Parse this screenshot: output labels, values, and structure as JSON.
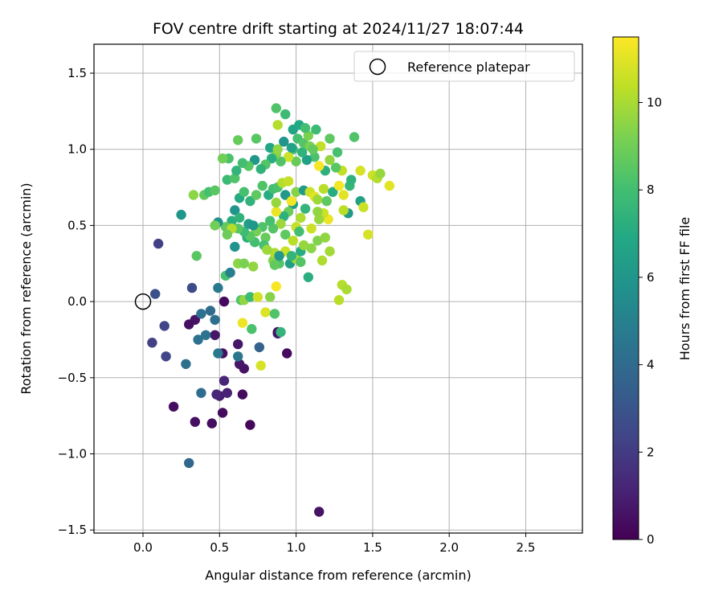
{
  "chart_data": {
    "type": "scatter",
    "title": "FOV centre drift starting at 2024/11/27 18:07:44",
    "xlabel": "Angular distance from reference (arcmin)",
    "ylabel": "Rotation from reference (arcmin)",
    "xlim": [
      -0.32,
      2.87
    ],
    "ylim": [
      -1.52,
      1.69
    ],
    "xticks": [
      0.0,
      0.5,
      1.0,
      1.5,
      2.0,
      2.5
    ],
    "xtick_labels": [
      "0.0",
      "0.5",
      "1.0",
      "1.5",
      "2.0",
      "2.5"
    ],
    "yticks": [
      -1.5,
      -1.0,
      -0.5,
      0.0,
      0.5,
      1.0,
      1.5
    ],
    "ytick_labels": [
      "−1.5",
      "−1.0",
      "−0.5",
      "0.0",
      "0.5",
      "1.0",
      "1.5"
    ],
    "grid": true,
    "colormap": "viridis",
    "colorbar": {
      "label": "Hours from first FF file",
      "min": 0,
      "max": 11.5,
      "ticks": [
        0,
        2,
        4,
        6,
        8,
        10
      ],
      "tick_labels": [
        "0",
        "2",
        "4",
        "6",
        "8",
        "10"
      ]
    },
    "legend": {
      "position": "top-right",
      "entries": [
        {
          "label": "Reference platepar",
          "marker": "open-circle"
        }
      ]
    },
    "reference_point": {
      "x": 0.0,
      "y": 0.0
    },
    "series": [
      {
        "points": [
          [
            1.15,
            -1.38,
            0.6
          ],
          [
            0.3,
            -1.06,
            3.8
          ],
          [
            0.2,
            -0.69,
            0.4
          ],
          [
            0.34,
            -0.79,
            0.5
          ],
          [
            0.45,
            -0.8,
            0.4
          ],
          [
            0.52,
            -0.73,
            0.3
          ],
          [
            0.7,
            -0.81,
            0.2
          ],
          [
            0.5,
            -0.62,
            1.0
          ],
          [
            0.48,
            -0.61,
            1.2
          ],
          [
            0.55,
            -0.6,
            1.1
          ],
          [
            0.65,
            -0.61,
            0.3
          ],
          [
            0.38,
            -0.6,
            4.1
          ],
          [
            0.53,
            -0.52,
            1.2
          ],
          [
            0.66,
            -0.44,
            0.6
          ],
          [
            0.63,
            -0.41,
            0.7
          ],
          [
            0.28,
            -0.41,
            4.2
          ],
          [
            0.62,
            -0.36,
            4.5
          ],
          [
            0.52,
            -0.34,
            0.5
          ],
          [
            0.49,
            -0.34,
            4.6
          ],
          [
            0.15,
            -0.36,
            2.4
          ],
          [
            0.06,
            -0.27,
            2.2
          ],
          [
            0.62,
            -0.28,
            0.7
          ],
          [
            0.76,
            -0.3,
            3.6
          ],
          [
            0.94,
            -0.34,
            0.3
          ],
          [
            0.36,
            -0.25,
            4.3
          ],
          [
            0.47,
            -0.22,
            0.7
          ],
          [
            0.41,
            -0.22,
            4.4
          ],
          [
            0.34,
            -0.12,
            0.6
          ],
          [
            0.3,
            -0.15,
            0.5
          ],
          [
            0.14,
            -0.16,
            2.4
          ],
          [
            0.38,
            -0.08,
            4.3
          ],
          [
            0.44,
            -0.06,
            4.0
          ],
          [
            0.47,
            -0.12,
            4.3
          ],
          [
            0.88,
            -0.21,
            1.6
          ],
          [
            0.88,
            -0.2,
            0.5
          ],
          [
            0.9,
            -0.2,
            7.5
          ],
          [
            0.71,
            -0.18,
            8.2
          ],
          [
            0.65,
            -0.14,
            11.2
          ],
          [
            0.77,
            -0.42,
            10.8
          ],
          [
            0.8,
            -0.07,
            10.9
          ],
          [
            0.86,
            -0.08,
            8.3
          ],
          [
            0.53,
            0.0,
            0.3
          ],
          [
            0.64,
            0.01,
            8.3
          ],
          [
            0.66,
            0.01,
            9.6
          ],
          [
            0.7,
            0.03,
            7.8
          ],
          [
            0.75,
            0.03,
            10.7
          ],
          [
            0.83,
            0.03,
            9.4
          ],
          [
            0.87,
            0.1,
            11.4
          ],
          [
            0.49,
            0.09,
            4.6
          ],
          [
            0.32,
            0.09,
            2.6
          ],
          [
            0.08,
            0.05,
            2.8
          ],
          [
            0.1,
            0.38,
            2.2
          ],
          [
            0.35,
            0.3,
            8.5
          ],
          [
            0.54,
            0.17,
            8.1
          ],
          [
            0.57,
            0.19,
            4.9
          ],
          [
            0.62,
            0.25,
            9.5
          ],
          [
            0.66,
            0.25,
            9.2
          ],
          [
            0.72,
            0.23,
            9.6
          ],
          [
            0.6,
            0.36,
            5.8
          ],
          [
            0.68,
            0.42,
            7.2
          ],
          [
            0.73,
            0.39,
            8.0
          ],
          [
            0.8,
            0.42,
            8.8
          ],
          [
            0.85,
            0.27,
            9.4
          ],
          [
            0.86,
            0.32,
            10.1
          ],
          [
            0.89,
            0.25,
            8.4
          ],
          [
            0.93,
            0.33,
            10.6
          ],
          [
            0.96,
            0.25,
            6.4
          ],
          [
            1.0,
            0.28,
            9.9
          ],
          [
            1.03,
            0.33,
            7.1
          ],
          [
            1.05,
            0.37,
            9.7
          ],
          [
            1.08,
            0.16,
            7.2
          ],
          [
            1.1,
            0.35,
            9.5
          ],
          [
            1.14,
            0.4,
            9.3
          ],
          [
            1.17,
            0.27,
            10.1
          ],
          [
            1.19,
            0.42,
            9.6
          ],
          [
            1.22,
            0.33,
            9.9
          ],
          [
            1.28,
            0.01,
            10.3
          ],
          [
            1.3,
            0.11,
            10.2
          ],
          [
            1.33,
            0.08,
            10.0
          ],
          [
            1.21,
            0.54,
            11.2
          ],
          [
            1.18,
            0.58,
            10.6
          ],
          [
            1.15,
            0.54,
            9.7
          ],
          [
            1.1,
            0.48,
            10.6
          ],
          [
            1.06,
            0.61,
            7.5
          ],
          [
            1.03,
            0.55,
            10.1
          ],
          [
            1.0,
            0.49,
            10.5
          ],
          [
            0.98,
            0.64,
            6.3
          ],
          [
            0.95,
            0.59,
            8.9
          ],
          [
            0.92,
            0.56,
            7.3
          ],
          [
            0.9,
            0.51,
            9.8
          ],
          [
            0.87,
            0.59,
            11.2
          ],
          [
            0.85,
            0.48,
            8.4
          ],
          [
            0.83,
            0.53,
            8.1
          ],
          [
            0.78,
            0.49,
            8.3
          ],
          [
            0.74,
            0.46,
            9.1
          ],
          [
            0.7,
            0.43,
            8.5
          ],
          [
            0.66,
            0.46,
            7.8
          ],
          [
            0.62,
            0.48,
            8.5
          ],
          [
            0.58,
            0.53,
            7.2
          ],
          [
            0.54,
            0.49,
            8.7
          ],
          [
            0.49,
            0.52,
            5.8
          ],
          [
            0.6,
            0.6,
            5.9
          ],
          [
            0.63,
            0.55,
            7.4
          ],
          [
            0.69,
            0.51,
            6.5
          ],
          [
            0.72,
            0.5,
            6.0
          ],
          [
            0.25,
            0.57,
            6.0
          ],
          [
            0.4,
            0.7,
            8.7
          ],
          [
            0.43,
            0.72,
            8.1
          ],
          [
            0.47,
            0.73,
            8.5
          ],
          [
            0.33,
            0.7,
            9.5
          ],
          [
            0.55,
            0.8,
            7.8
          ],
          [
            0.6,
            0.81,
            8.3
          ],
          [
            0.63,
            0.68,
            7.0
          ],
          [
            0.66,
            0.72,
            8.1
          ],
          [
            0.7,
            0.66,
            7.4
          ],
          [
            0.74,
            0.7,
            8.6
          ],
          [
            0.78,
            0.76,
            8.3
          ],
          [
            0.82,
            0.7,
            7.1
          ],
          [
            0.85,
            0.74,
            8.0
          ],
          [
            0.87,
            0.65,
            9.7
          ],
          [
            0.88,
            0.75,
            8.2
          ],
          [
            0.91,
            0.78,
            10.2
          ],
          [
            0.93,
            0.7,
            6.1
          ],
          [
            0.95,
            0.79,
            10.5
          ],
          [
            0.97,
            0.66,
            11.3
          ],
          [
            1.0,
            0.72,
            9.4
          ],
          [
            1.05,
            0.73,
            6.2
          ],
          [
            1.09,
            0.72,
            10.6
          ],
          [
            1.12,
            0.69,
            11.0
          ],
          [
            1.14,
            0.67,
            9.8
          ],
          [
            1.18,
            0.74,
            10.3
          ],
          [
            1.2,
            0.66,
            8.6
          ],
          [
            1.24,
            0.72,
            7.1
          ],
          [
            1.28,
            0.76,
            11.3
          ],
          [
            1.31,
            0.7,
            11.0
          ],
          [
            1.34,
            0.58,
            6.2
          ],
          [
            1.31,
            0.6,
            10.3
          ],
          [
            1.35,
            0.76,
            7.6
          ],
          [
            1.42,
            0.66,
            6.5
          ],
          [
            1.44,
            0.62,
            10.6
          ],
          [
            1.47,
            0.44,
            10.8
          ],
          [
            1.5,
            0.83,
            10.6
          ],
          [
            1.53,
            0.81,
            10.2
          ],
          [
            1.55,
            0.84,
            9.7
          ],
          [
            1.61,
            0.76,
            11.0
          ],
          [
            1.42,
            0.86,
            10.8
          ],
          [
            1.36,
            0.8,
            7.4
          ],
          [
            1.3,
            0.86,
            10.4
          ],
          [
            1.26,
            0.88,
            8.5
          ],
          [
            1.22,
            0.93,
            9.6
          ],
          [
            1.19,
            0.86,
            7.3
          ],
          [
            1.15,
            0.89,
            11.4
          ],
          [
            1.12,
            0.95,
            8.2
          ],
          [
            1.07,
            0.93,
            6.5
          ],
          [
            1.04,
            0.98,
            7.4
          ],
          [
            1.0,
            0.92,
            8.8
          ],
          [
            0.98,
            1.0,
            7.9
          ],
          [
            0.95,
            0.95,
            10.6
          ],
          [
            0.9,
            0.92,
            8.3
          ],
          [
            0.87,
            0.97,
            9.3
          ],
          [
            0.84,
            0.94,
            7.2
          ],
          [
            0.8,
            0.9,
            8.4
          ],
          [
            0.77,
            0.87,
            7.4
          ],
          [
            0.73,
            0.93,
            6.0
          ],
          [
            0.69,
            0.89,
            8.5
          ],
          [
            0.65,
            0.91,
            8.0
          ],
          [
            0.61,
            0.86,
            7.5
          ],
          [
            0.56,
            0.94,
            8.2
          ],
          [
            0.52,
            0.94,
            9.0
          ],
          [
            0.62,
            1.06,
            8.8
          ],
          [
            0.74,
            1.07,
            8.5
          ],
          [
            0.83,
            1.01,
            6.8
          ],
          [
            0.88,
            1.0,
            9.6
          ],
          [
            0.92,
            1.05,
            5.9
          ],
          [
            0.97,
            1.01,
            6.6
          ],
          [
            1.01,
            1.07,
            8.1
          ],
          [
            1.05,
            1.04,
            8.4
          ],
          [
            1.08,
            1.09,
            9.2
          ],
          [
            1.13,
            1.13,
            7.8
          ],
          [
            1.16,
            1.02,
            10.4
          ],
          [
            1.22,
            1.07,
            8.6
          ],
          [
            1.27,
            0.98,
            8.1
          ],
          [
            1.38,
            1.08,
            8.3
          ],
          [
            0.98,
            1.13,
            6.7
          ],
          [
            1.02,
            1.16,
            6.9
          ],
          [
            1.06,
            1.14,
            8.0
          ],
          [
            0.88,
            1.16,
            10.2
          ],
          [
            0.87,
            1.27,
            8.3
          ],
          [
            0.93,
            1.23,
            7.8
          ],
          [
            1.09,
            1.02,
            9.2
          ],
          [
            1.11,
            1.0,
            8.7
          ],
          [
            0.79,
            0.37,
            8.1
          ],
          [
            0.93,
            0.44,
            8.6
          ],
          [
            0.98,
            0.4,
            10.3
          ],
          [
            1.02,
            0.46,
            8.0
          ],
          [
            1.14,
            0.59,
            9.6
          ],
          [
            1.03,
            0.26,
            8.4
          ],
          [
            0.97,
            0.3,
            7.5
          ],
          [
            0.89,
            0.3,
            6.1
          ],
          [
            0.81,
            0.34,
            9.8
          ],
          [
            0.58,
            0.48,
            10.2
          ],
          [
            0.55,
            0.44,
            8.9
          ],
          [
            0.47,
            0.5,
            9.0
          ],
          [
            0.86,
            0.24,
            8.7
          ]
        ]
      }
    ]
  }
}
